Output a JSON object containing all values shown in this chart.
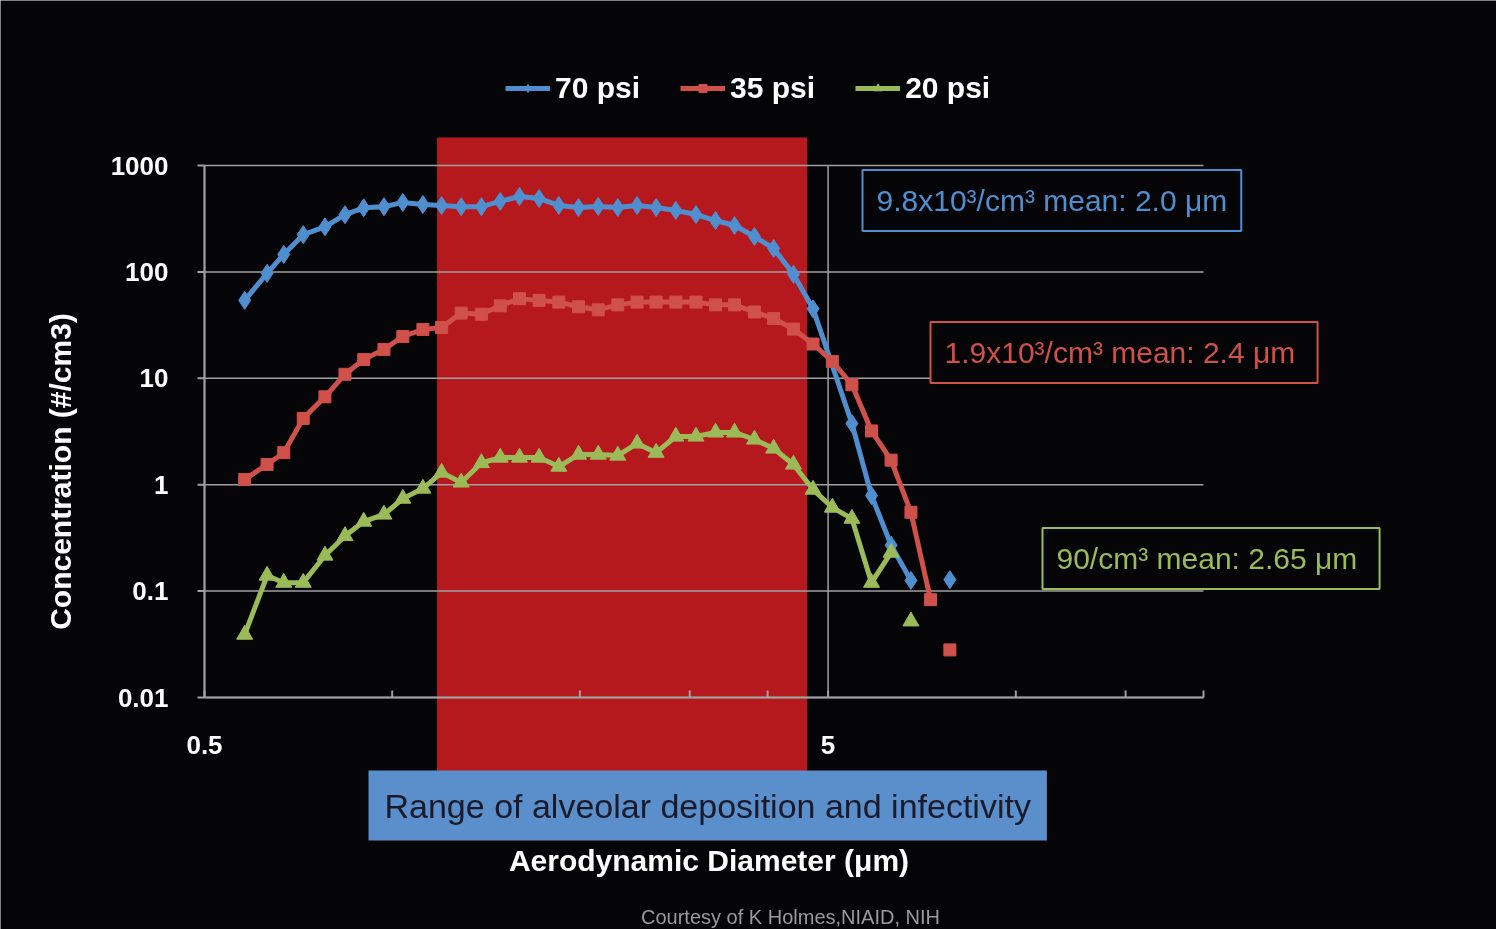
{
  "chart_data": {
    "type": "line",
    "xlabel": "Aerodynamic Diameter (μm)",
    "ylabel": "Concentration (#/cm3)",
    "log": "xy",
    "xlim": [
      0.5,
      20
    ],
    "ylim": [
      0.01,
      1000
    ],
    "xticks": [
      0.5,
      {
        "value": 1,
        "label": null
      },
      {
        "value": 2,
        "label": null
      },
      {
        "value": 3,
        "label": null
      },
      {
        "value": 4,
        "label": null
      },
      5,
      {
        "value": 10,
        "label": null
      },
      {
        "value": 15,
        "label": null
      },
      {
        "value": 20,
        "label": null
      }
    ],
    "yticks": [
      0.01,
      0.1,
      1,
      10,
      100,
      1000
    ],
    "grid": true,
    "legend": "top",
    "line_style": "solid",
    "series": [
      {
        "name": "70 psi",
        "color": "#4f8fd0",
        "marker": "diamond",
        "x": [
          0.58,
          0.63,
          0.67,
          0.72,
          0.78,
          0.84,
          0.9,
          0.97,
          1.04,
          1.12,
          1.2,
          1.29,
          1.39,
          1.49,
          1.6,
          1.72,
          1.85,
          1.99,
          2.14,
          2.3,
          2.47,
          2.65,
          2.85,
          3.07,
          3.3,
          3.54,
          3.81,
          4.09,
          4.4,
          4.73,
          5.46,
          5.87,
          6.31,
          6.79,
          7.3,
          7.84
        ],
        "values": [
          54,
          97,
          146,
          224,
          265,
          345,
          400,
          410,
          450,
          430,
          420,
          410,
          410,
          460,
          511,
          490,
          421,
          403,
          412,
          403,
          421,
          403,
          378,
          346,
          304,
          273,
          215,
          166,
          95,
          45,
          3.76,
          0.79,
          0.27,
          0.126,
          null,
          0.128
        ]
      },
      {
        "name": "35 psi",
        "color": "#d0504a",
        "marker": "square",
        "x": [
          0.58,
          0.63,
          0.67,
          0.72,
          0.78,
          0.84,
          0.9,
          0.97,
          1.04,
          1.12,
          1.2,
          1.29,
          1.39,
          1.49,
          1.6,
          1.72,
          1.85,
          1.99,
          2.14,
          2.3,
          2.47,
          2.65,
          2.85,
          3.07,
          3.3,
          3.54,
          3.81,
          4.09,
          4.4,
          4.73,
          5.08,
          5.46,
          5.87,
          6.31,
          6.79,
          7.3,
          7.56,
          7.84
        ],
        "values": [
          1.12,
          1.55,
          2.0,
          4.2,
          6.7,
          10.9,
          15,
          18.7,
          24.7,
          28.8,
          30,
          41,
          40,
          48,
          56,
          54,
          52,
          47,
          44,
          49,
          52,
          52,
          52,
          52,
          49,
          49,
          42,
          36.5,
          29,
          21,
          14.4,
          8.7,
          3.2,
          1.7,
          0.55,
          0.083,
          null,
          0.028
        ]
      },
      {
        "name": "20 psi",
        "color": "#9bbb59",
        "marker": "triangle",
        "x": [
          0.58,
          0.63,
          0.67,
          0.72,
          0.78,
          0.84,
          0.9,
          0.97,
          1.04,
          1.12,
          1.2,
          1.29,
          1.39,
          1.49,
          1.6,
          1.72,
          1.85,
          1.99,
          2.14,
          2.3,
          2.47,
          2.65,
          2.85,
          3.07,
          3.3,
          3.54,
          3.81,
          4.09,
          4.4,
          4.73,
          5.08,
          5.46,
          5.87,
          6.31,
          6.55,
          6.79
        ],
        "values": [
          0.039,
          0.14,
          0.12,
          0.12,
          0.216,
          0.33,
          0.45,
          0.525,
          0.74,
          0.92,
          1.3,
          1.05,
          1.6,
          1.8,
          1.8,
          1.8,
          1.48,
          1.92,
          1.92,
          1.88,
          2.44,
          2.0,
          2.84,
          2.84,
          3.1,
          3.1,
          2.66,
          2.19,
          1.55,
          0.9,
          0.61,
          0.48,
          0.12,
          0.23,
          null,
          0.052
        ]
      }
    ],
    "bands": [
      {
        "axis": "x",
        "from": 1.18,
        "to": 4.63,
        "label": "Range of alveolar deposition and infectivity",
        "color": "#b5191e"
      }
    ],
    "annotations": [
      "9.8x10³/cm³ mean: 2.0 μm",
      "1.9x10³/cm³  mean: 2.4 μm",
      "90/cm³  mean: 2.65 μm",
      "Courtesy of K Holmes,NIAID, NIH"
    ]
  }
}
